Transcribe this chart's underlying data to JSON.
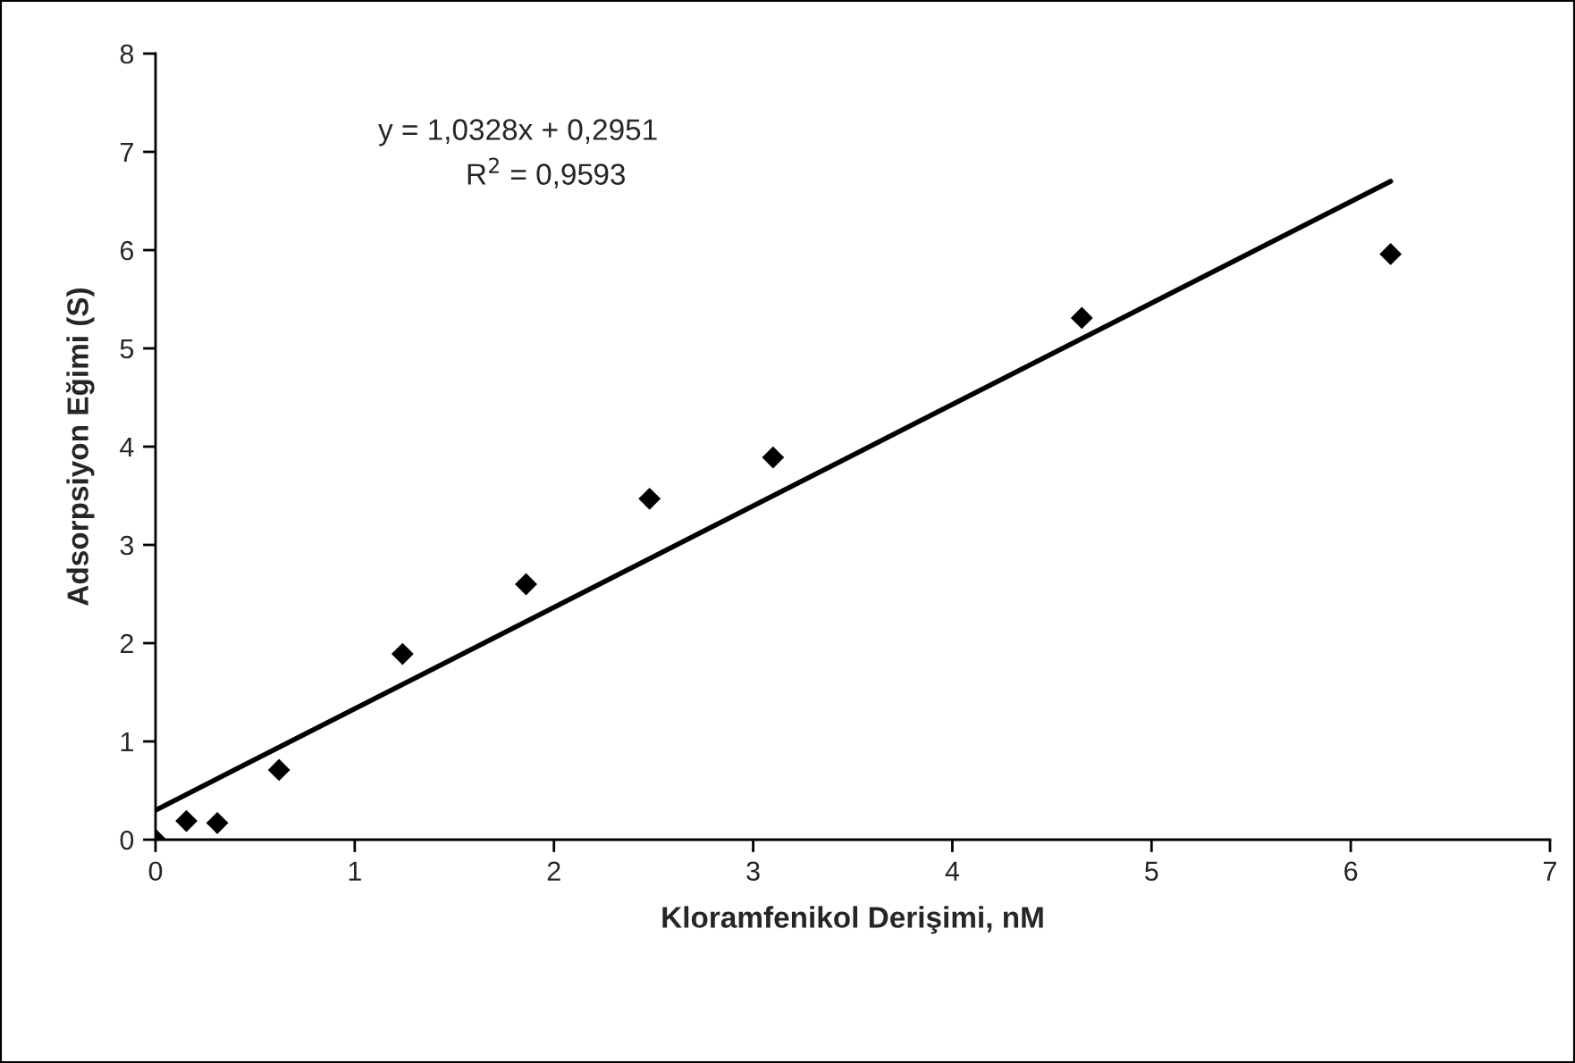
{
  "chart_data": {
    "type": "scatter",
    "xlabel": "Kloramfenikol Derişimi, nM",
    "ylabel": "Adsorpsiyon Eğimi (S)",
    "x": [
      0,
      0.155,
      0.31,
      0.62,
      1.24,
      1.86,
      2.48,
      3.1,
      4.65,
      6.2
    ],
    "series": [
      {
        "color": "#000000",
        "marker": "diamond",
        "values": [
          0,
          0.19,
          0.17,
          0.71,
          1.89,
          2.6,
          3.47,
          3.89,
          5.31,
          5.96
        ]
      },
      {
        "type": "line",
        "color": "#000000",
        "marker": "none",
        "line_style": "solid",
        "x": [
          0,
          6.2
        ],
        "values": [
          0.3,
          6.7
        ]
      }
    ],
    "annotations": [
      "y = 1,0328x + 0,2951",
      "R$^{2}$ = 0,9593"
    ],
    "xlim": [
      0,
      7
    ],
    "ylim": [
      0,
      8
    ],
    "xticks": [
      0,
      1,
      2,
      3,
      4,
      5,
      6,
      7
    ],
    "yticks": [
      0,
      1,
      2,
      3,
      4,
      5,
      6,
      7,
      8
    ],
    "grid": false,
    "legend": false
  }
}
